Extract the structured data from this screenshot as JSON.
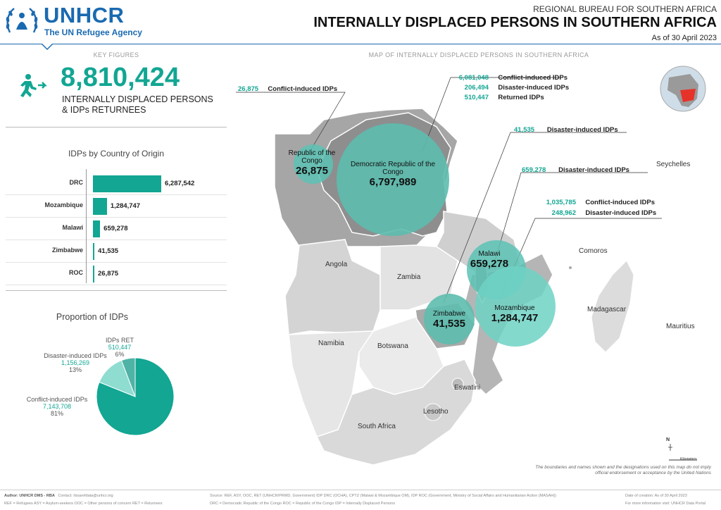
{
  "header": {
    "logo_text": "UNHCR",
    "logo_sub": "The UN Refugee Agency",
    "region": "REGIONAL BUREAU FOR SOUTHERN AFRICA",
    "title": "INTERNALLY DISPLACED PERSONS IN SOUTHERN AFRICA",
    "date": "As of 30 April 2023"
  },
  "key_figures": {
    "section_label": "KEY FIGURES",
    "total": "8,810,424",
    "desc_line1": "INTERNALLY DISPLACED PERSONS",
    "desc_line2": "& IDPs RETURNEES"
  },
  "chart_data": [
    {
      "type": "bar",
      "title": "IDPs by Country of Origin",
      "categories": [
        "DRC",
        "Mozambique",
        "Malawi",
        "Zimbabwe",
        "ROC"
      ],
      "values": [
        6287542,
        1284747,
        659278,
        41535,
        26875
      ],
      "labels": [
        "6,287,542",
        "1,284,747",
        "659,278",
        "41,535",
        "26,875"
      ],
      "orientation": "horizontal",
      "color": "#12a693"
    },
    {
      "type": "pie",
      "title": "Proportion of IDPs",
      "slices": [
        {
          "name": "Conflict-induced IDPs",
          "value_label": "7,143,708",
          "percent_label": "81%",
          "value": 7143708,
          "color": "#12a693"
        },
        {
          "name": "Disaster-induced IDPs",
          "value_label": "1,156,269",
          "percent_label": "13%",
          "value": 1156269,
          "color": "#8fdcd1"
        },
        {
          "name": "IDPs RET",
          "value_label": "510,447",
          "percent_label": "6%",
          "value": 510447,
          "color": "#4fb3a6"
        }
      ]
    }
  ],
  "map": {
    "section_label": "MAP OF INTERNALLY DISPLACED PERSONS IN SOUTHERN AFRICA",
    "callouts": {
      "roc": {
        "n1": "26,875",
        "t1": "Conflict-induced IDPs"
      },
      "drc": {
        "n1": "6,081,048",
        "t1": "Conflict-induced IDPs",
        "n2": "206,494",
        "t2": "Disaster-induced IDPs",
        "n3": "510,447",
        "t3": "Returned IDPs"
      },
      "zim": {
        "n1": "41,535",
        "t1": "Disaster-induced IDPs"
      },
      "mwi": {
        "n1": "659,278",
        "t1": "Disaster-induced IDPs"
      },
      "moz": {
        "n1": "1,035,785",
        "t1": "Conflict-induced IDPs",
        "n2": "248,962",
        "t2": "Disaster-induced IDPs"
      }
    },
    "bubbles": {
      "roc": {
        "name": "Republic of the Congo",
        "value": "26,875"
      },
      "drc": {
        "name": "Democratic Republic of the Congo",
        "value": "6,797,989"
      },
      "mwi": {
        "name": "Malawi",
        "value": "659,278"
      },
      "zim": {
        "name": "Zimbabwe",
        "value": "41,535"
      },
      "moz": {
        "name": "Mozambique",
        "value": "1,284,747"
      }
    },
    "countries": {
      "angola": "Angola",
      "zambia": "Zambia",
      "namibia": "Namibia",
      "botswana": "Botswana",
      "eswatini": "Eswatini",
      "lesotho": "Lesotho",
      "south_africa": "South Africa",
      "madagascar": "Madagascar",
      "comoros": "Comoros",
      "seychelles": "Seychelles",
      "mauritius": "Mauritius"
    },
    "scale_n": "N",
    "scale_unit": "Kilometers",
    "disclaimer": "The boundaries and names shown and the designations used on this map do not imply official endorsement or acceptance by the United Nations"
  },
  "footer": {
    "author": "Author: UNHCR DMS - RBA",
    "contact": "Contact: rbsarefdata@unhcr.org",
    "source": "Source: REF, ASY, OOC, RET (UNHCR/PRMD, Government) IDP DRC (OCHA), CPTZ (Malawi & Mozambique OM), IDP ROC (Government, Ministry of Social Affairs and Humanitarian Action (MASAH))",
    "date_creation": "Date of creation: As of 30 April 2023",
    "more_info": "For more information visit: UNHCR Data Portal",
    "legend1": "REF = Refugees ASY = Asylum-seekers OOC = Other persons of concern RET = Returnees",
    "legend2": "DRC = Democratic Republic of the Congo   ROC = Republic of the Congo   IDP = Internally Displaced Persons"
  }
}
